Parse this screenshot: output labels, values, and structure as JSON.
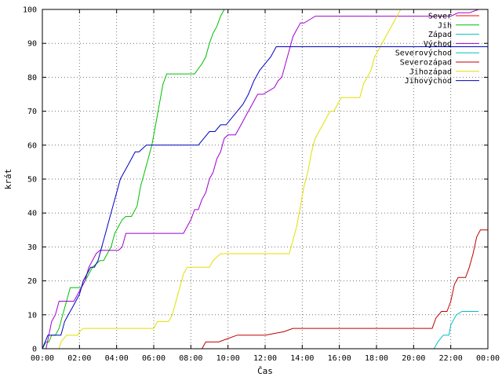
{
  "chart_data": {
    "type": "line",
    "xlabel": "Čas",
    "ylabel": "krát",
    "xlim": [
      0,
      24
    ],
    "ylim": [
      0,
      100
    ],
    "x_ticks": [
      "00:00",
      "02:00",
      "04:00",
      "06:00",
      "08:00",
      "10:00",
      "12:00",
      "14:00",
      "16:00",
      "18:00",
      "20:00",
      "22:00",
      "00:00"
    ],
    "y_ticks": [
      "0",
      "10",
      "20",
      "30",
      "40",
      "50",
      "60",
      "70",
      "80",
      "90",
      "100"
    ],
    "grid": true,
    "legend_position": "top-right",
    "series": [
      {
        "name": "Sever",
        "color": "#ff0000",
        "x": [
          0,
          24
        ],
        "y": [
          null,
          null
        ],
        "hidden": true
      },
      {
        "name": "Jih",
        "color": "#00c000",
        "x": [
          0,
          0.2,
          0.35,
          0.5,
          0.7,
          0.9,
          1.1,
          1.3,
          1.5,
          1.7,
          1.9,
          2.1,
          2.3,
          2.5,
          2.7,
          2.9,
          3.1,
          3.3,
          3.5,
          3.7,
          3.9,
          4.1,
          4.3,
          4.5,
          4.8,
          5.1,
          5.3,
          5.5,
          5.7,
          5.9,
          6.1,
          6.3,
          6.5,
          6.7,
          6.9,
          7.1,
          7.3,
          7.5,
          7.7,
          8.2,
          8.6,
          8.8,
          9.0,
          9.2,
          9.4,
          9.6,
          9.8,
          10.0
        ],
        "y": [
          0,
          2,
          2,
          4,
          4,
          6,
          10,
          14,
          18,
          18,
          18,
          18,
          20,
          22,
          24,
          25,
          26,
          26,
          28,
          30,
          34,
          36,
          38,
          39,
          39,
          42,
          48,
          52,
          56,
          60,
          66,
          72,
          78,
          81,
          81,
          81,
          81,
          81,
          81,
          81,
          84,
          86,
          90,
          93,
          95,
          98,
          100,
          100
        ]
      },
      {
        "name": "Západ",
        "color": "#00c0c0",
        "x": [
          21.1,
          21.3,
          21.6,
          21.9,
          22.0,
          22.3,
          22.6,
          22.9,
          23.2,
          23.5
        ],
        "y": [
          0,
          2,
          4,
          4,
          7,
          10,
          11,
          11,
          11,
          11
        ]
      },
      {
        "name": "Východ",
        "color": "#a000d0",
        "x": [
          0,
          0.2,
          0.35,
          0.5,
          0.7,
          0.9,
          1.1,
          1.3,
          1.5,
          1.7,
          1.9,
          2.1,
          2.3,
          2.5,
          2.7,
          2.9,
          3.1,
          3.3,
          3.5,
          3.7,
          3.9,
          4.1,
          4.3,
          4.5,
          4.8,
          5.1,
          5.3,
          5.5,
          5.8,
          6.1,
          6.5,
          6.9,
          7.3,
          7.6,
          7.8,
          8.0,
          8.2,
          8.4,
          8.6,
          8.8,
          9.0,
          9.2,
          9.4,
          9.6,
          9.8,
          10.0,
          10.2,
          10.4,
          10.6,
          10.8,
          11.0,
          11.2,
          11.4,
          11.6,
          11.9,
          12.2,
          12.5,
          12.7,
          12.9,
          13.1,
          13.3,
          13.5,
          13.7,
          13.9,
          14.1,
          14.4,
          14.7,
          15.1,
          15.6,
          16.2,
          17.0,
          18.0,
          19.0,
          20.0,
          21.0,
          22.0,
          22.4,
          23.0,
          23.5,
          24.0
        ],
        "y": [
          0,
          0,
          4,
          8,
          10,
          14,
          14,
          14,
          14,
          14,
          16,
          18,
          20,
          24,
          26,
          28,
          29,
          29,
          29,
          29,
          29,
          29,
          30,
          34,
          34,
          34,
          34,
          34,
          34,
          34,
          34,
          34,
          34,
          34,
          36,
          38,
          41,
          41,
          44,
          46,
          50,
          52,
          56,
          58,
          62,
          63,
          63,
          63,
          65,
          67,
          69,
          71,
          73,
          75,
          75,
          76,
          77,
          79,
          80,
          84,
          88,
          92,
          94,
          96,
          96,
          97,
          98,
          98,
          98,
          98,
          98,
          98,
          98,
          98,
          98,
          98,
          99,
          99,
          100,
          100
        ]
      },
      {
        "name": "Severovýchod",
        "color": "#00c0c0",
        "x": [
          0,
          24
        ],
        "y": [
          null,
          null
        ],
        "hidden": true
      },
      {
        "name": "Severozápad",
        "color": "#c00000",
        "x": [
          8.6,
          8.8,
          9.5,
          10.0,
          10.5,
          11.0,
          12.0,
          13.0,
          13.5,
          15.0,
          17.0,
          19.0,
          20.5,
          21.0,
          21.2,
          21.5,
          21.8,
          22.0,
          22.2,
          22.4,
          22.6,
          22.8,
          23.0,
          23.2,
          23.4,
          23.6,
          23.8,
          24.0
        ],
        "y": [
          0,
          2,
          2,
          3,
          4,
          4,
          4,
          5,
          6,
          6,
          6,
          6,
          6,
          6,
          9,
          11,
          11,
          14,
          19,
          21,
          21,
          21,
          24,
          28,
          33,
          35,
          35,
          35
        ]
      },
      {
        "name": "Jihozápad",
        "color": "#e0e000",
        "x": [
          0.9,
          1.0,
          1.3,
          1.6,
          1.9,
          2.0,
          2.2,
          2.4,
          2.6,
          3.0,
          4.0,
          5.0,
          6.0,
          6.2,
          6.4,
          6.6,
          6.8,
          7.0,
          7.2,
          7.4,
          7.6,
          7.8,
          8.0,
          8.5,
          9.0,
          9.2,
          9.4,
          9.6,
          9.8,
          10.0,
          10.5,
          11.0,
          12.0,
          13.0,
          13.3,
          13.5,
          13.7,
          13.9,
          14.1,
          14.3,
          14.5,
          14.7,
          14.9,
          15.1,
          15.3,
          15.5,
          15.7,
          15.9,
          16.1,
          16.3,
          16.5,
          16.7,
          16.9,
          17.1,
          17.3,
          17.5,
          17.7,
          17.9,
          18.1,
          18.3,
          18.5,
          18.7,
          18.9,
          19.1,
          19.3,
          19.5,
          19.7,
          19.9,
          20.1,
          20.3,
          20.5,
          20.7,
          20.9,
          21.1,
          21.3,
          21.5,
          21.8,
          22.0,
          22.2,
          22.4,
          22.6,
          22.8,
          23.0,
          23.2,
          23.4,
          23.6,
          23.8,
          24.0
        ],
        "y": [
          0,
          2,
          4,
          4,
          4,
          5,
          6,
          6,
          6,
          6,
          6,
          6,
          6,
          8,
          8,
          8,
          8,
          10,
          14,
          18,
          22,
          24,
          24,
          24,
          24,
          26,
          27,
          28,
          28,
          28,
          28,
          28,
          28,
          28,
          28,
          32,
          36,
          42,
          48,
          52,
          58,
          62,
          64,
          66,
          68,
          70,
          70,
          72,
          74,
          74,
          74,
          74,
          74,
          74,
          78,
          80,
          82,
          86,
          88,
          90,
          92,
          94,
          96,
          98,
          100,
          100,
          100,
          100,
          100,
          100,
          100,
          100,
          100,
          100,
          100,
          100,
          100,
          100,
          100,
          100,
          100,
          100,
          100,
          100,
          100,
          100,
          100,
          100
        ]
      },
      {
        "name": "Jihovýchod",
        "color": "#0000c0",
        "x": [
          0,
          0.15,
          0.3,
          0.45,
          0.6,
          0.8,
          1.0,
          1.2,
          1.4,
          1.6,
          1.8,
          2.0,
          2.2,
          2.4,
          2.6,
          2.8,
          3.0,
          3.2,
          3.4,
          3.6,
          3.8,
          4.0,
          4.2,
          4.4,
          4.6,
          4.8,
          5.0,
          5.2,
          5.4,
          5.6,
          5.8,
          6.0,
          6.2,
          6.5,
          7.0,
          7.5,
          7.8,
          8.1,
          8.4,
          8.7,
          9.0,
          9.3,
          9.6,
          9.9,
          10.2,
          10.5,
          10.8,
          11.1,
          11.4,
          11.7,
          12.0,
          12.3,
          12.6,
          13.0,
          14.0,
          16.0,
          18.0,
          20.0,
          22.0,
          24.0
        ],
        "y": [
          0,
          2,
          4,
          4,
          4,
          4,
          4,
          8,
          10,
          12,
          14,
          16,
          20,
          22,
          24,
          24,
          26,
          30,
          34,
          38,
          42,
          46,
          50,
          52,
          54,
          56,
          58,
          58,
          59,
          60,
          60,
          60,
          60,
          60,
          60,
          60,
          60,
          60,
          60,
          62,
          64,
          64,
          66,
          66,
          68,
          70,
          72,
          75,
          79,
          82,
          84,
          86,
          89,
          89,
          89,
          89,
          89,
          89,
          89,
          89
        ]
      }
    ]
  }
}
